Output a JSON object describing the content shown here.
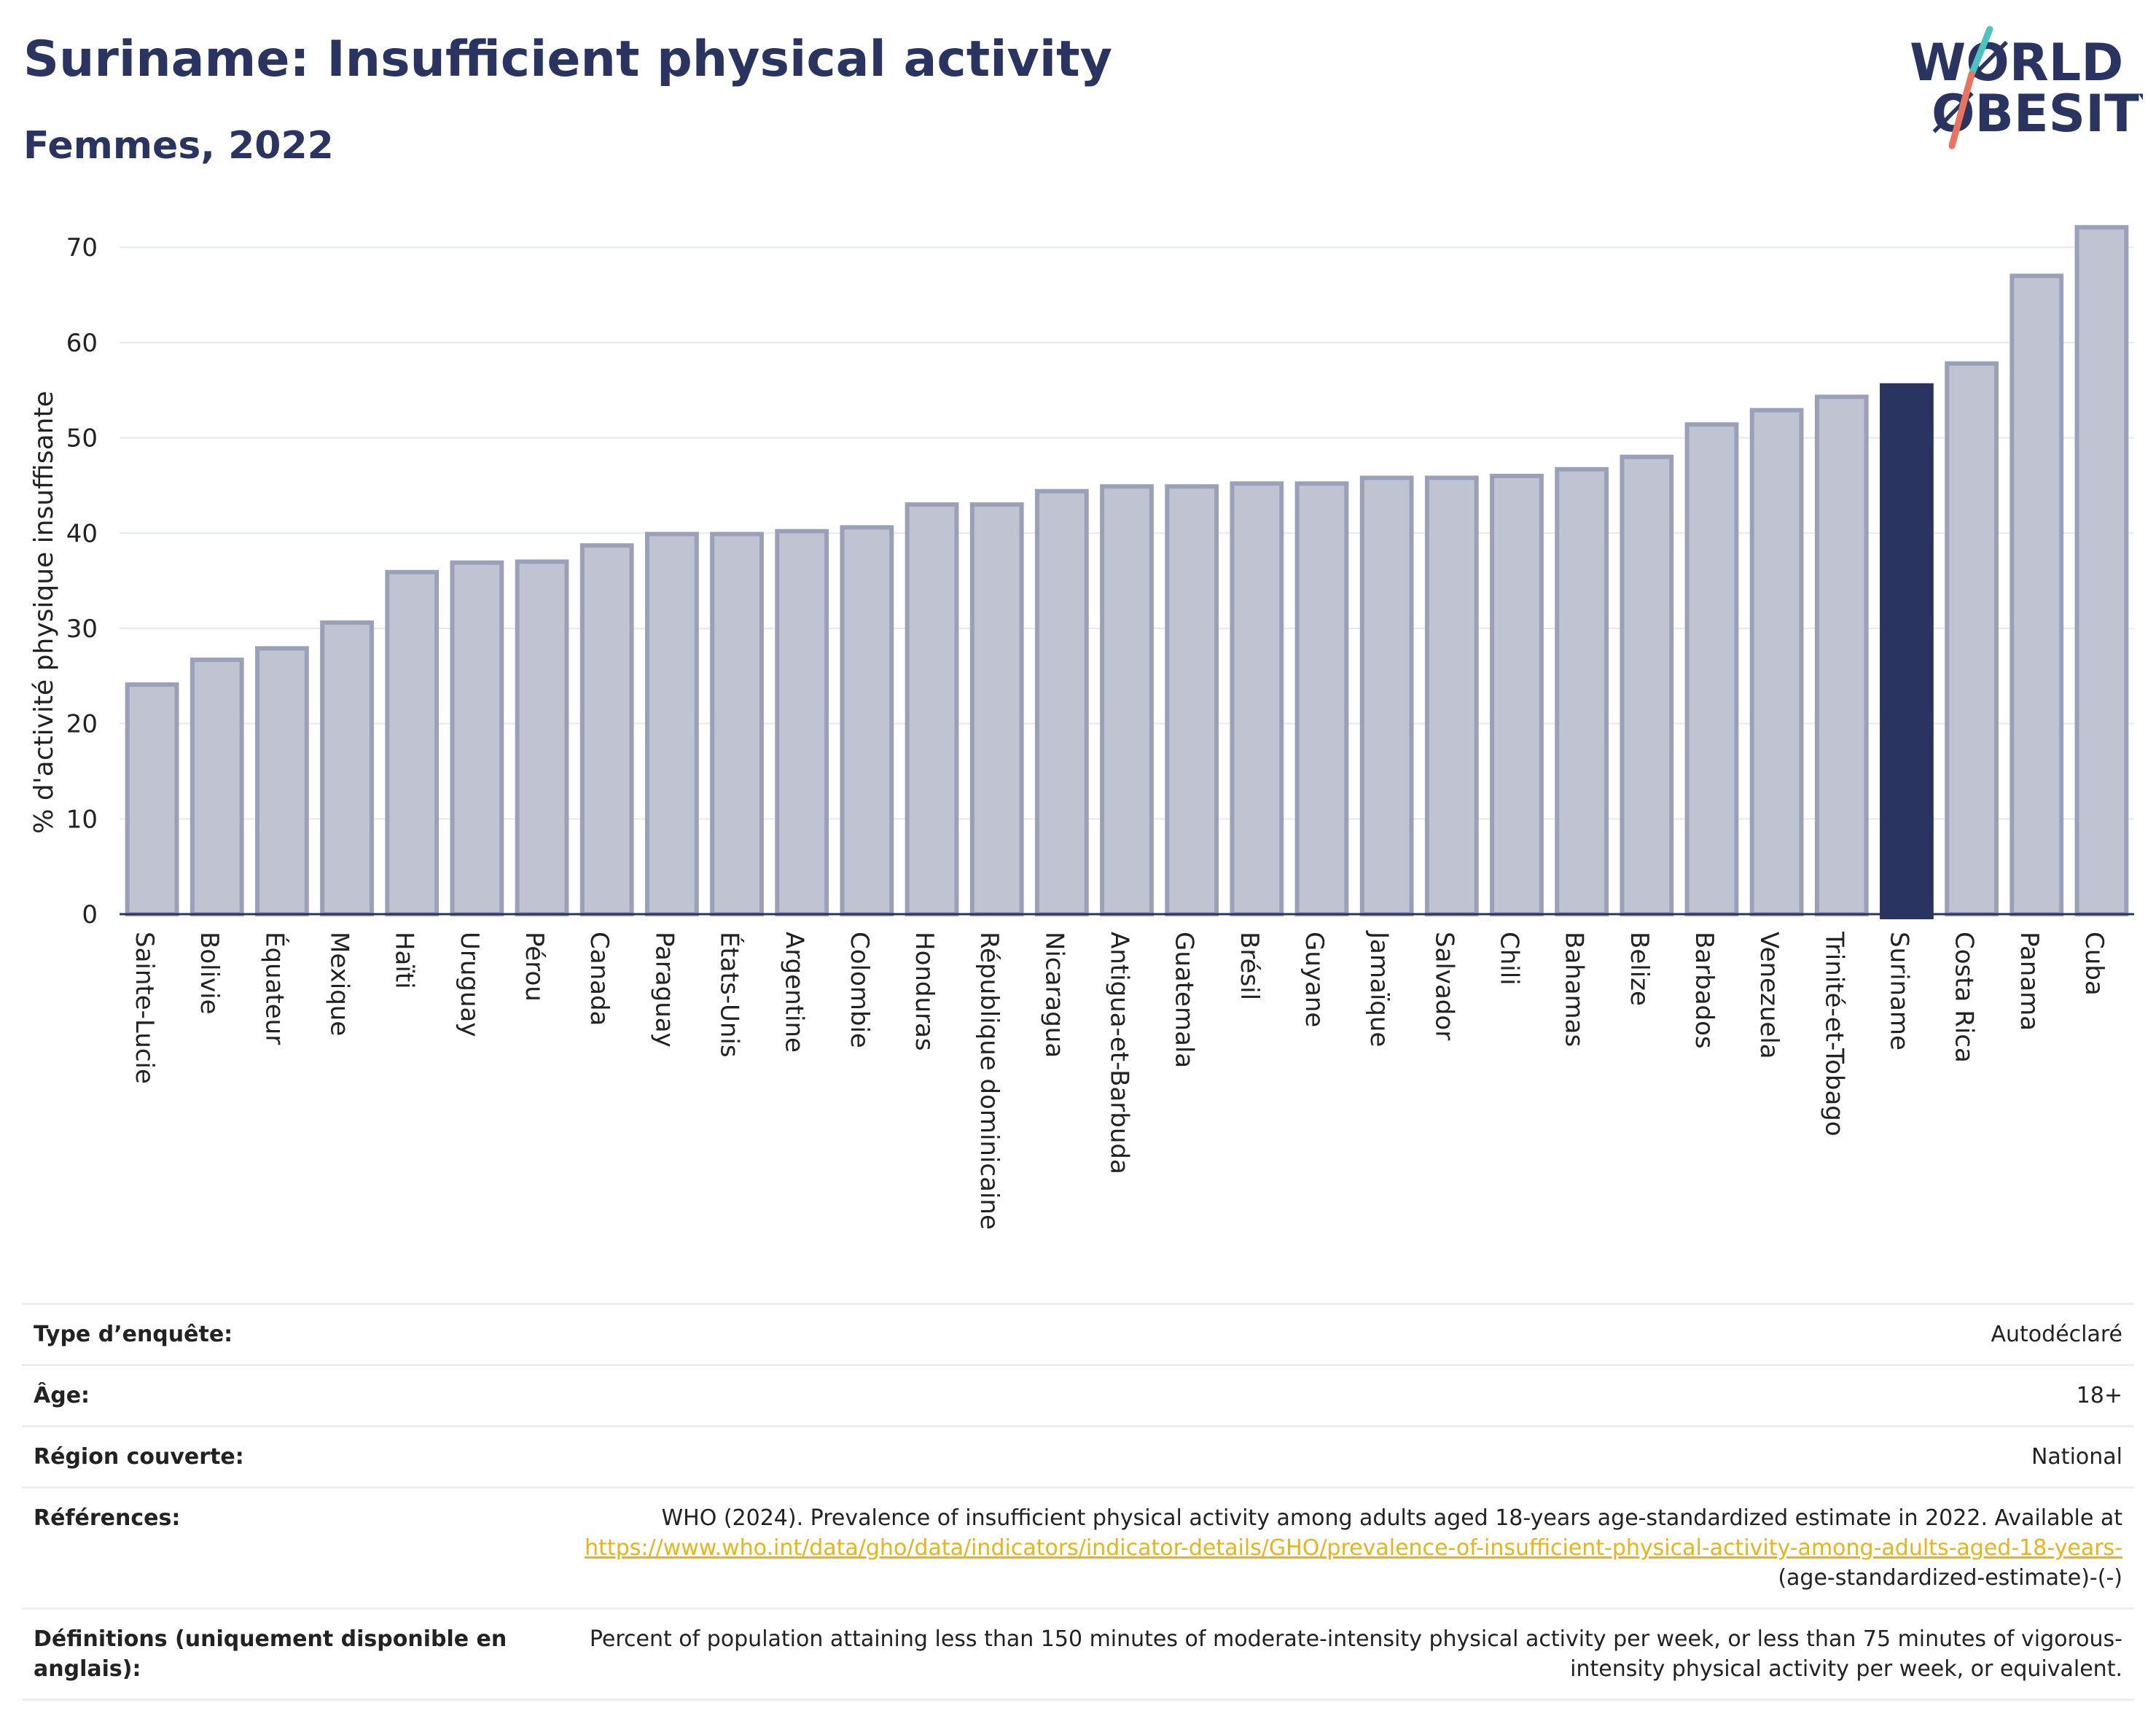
{
  "title": "Suriname: Insufficient physical activity",
  "subtitle": "Femmes, 2022",
  "logo": {
    "line1": "WØRLD",
    "line2": "ØBESITY",
    "accent_top": "#4cc3c0",
    "accent_bottom": "#e8735f"
  },
  "colors": {
    "bar": "#c0c3d2",
    "bar_stroke": "#9aa0b8",
    "highlight": "#2a3460",
    "grid": "#e6e8ee",
    "axis": "#2a3460"
  },
  "chart_data": {
    "type": "bar",
    "title": "Suriname: Insufficient physical activity",
    "subtitle": "Femmes, 2022",
    "ylabel": "% d'activité physique insuffisante",
    "xlabel": "",
    "ylim": [
      0,
      73
    ],
    "yticks": [
      0,
      10,
      20,
      30,
      40,
      50,
      60,
      70
    ],
    "grid": true,
    "highlight": "Suriname",
    "categories": [
      "Sainte-Lucie",
      "Bolivie",
      "Équateur",
      "Mexique",
      "Haïti",
      "Uruguay",
      "Pérou",
      "Canada",
      "Paraguay",
      "États-Unis",
      "Argentine",
      "Colombie",
      "Honduras",
      "République dominicaine",
      "Nicaragua",
      "Antigua-et-Barbuda",
      "Guatemala",
      "Brésil",
      "Guyane",
      "Jamaïque",
      "Salvador",
      "Chili",
      "Bahamas",
      "Belize",
      "Barbados",
      "Venezuela",
      "Trinité-et-Tobago",
      "Suriname",
      "Costa Rica",
      "Panama",
      "Cuba"
    ],
    "values": [
      24.1,
      26.7,
      27.9,
      30.6,
      35.9,
      36.9,
      37.0,
      38.7,
      39.9,
      39.9,
      40.2,
      40.6,
      43.0,
      43.0,
      44.4,
      44.9,
      44.9,
      45.2,
      45.2,
      45.8,
      45.8,
      46.0,
      46.7,
      48.0,
      51.4,
      52.9,
      54.3,
      55.5,
      57.8,
      67.0,
      72.1
    ]
  },
  "info": [
    {
      "key": "Type d’enquête:",
      "value": "Autodéclaré"
    },
    {
      "key": "Âge:",
      "value": "18+"
    },
    {
      "key": "Région couverte:",
      "value": "National"
    },
    {
      "key": "Références:",
      "value": "WHO (2024). Prevalence of insufficient physical activity among adults aged 18-years age-standardized estimate in 2022. Available at",
      "link": "https://www.who.int/data/gho/data/indicators/indicator-details/GHO/prevalence-of-insufficient-physical-activity-among-adults-aged-18-years-",
      "value_after": "(age-standardized-estimate)-(-)"
    },
    {
      "key": "Définitions (uniquement disponible en anglais):",
      "value": "Percent of population attaining less than 150 minutes of moderate-intensity physical activity per week, or less than 75 minutes of vigorous-intensity physical activity per week, or equivalent."
    }
  ]
}
